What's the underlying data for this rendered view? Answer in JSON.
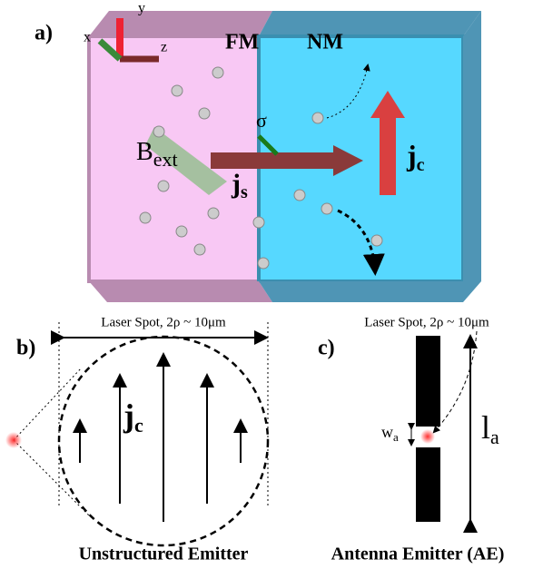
{
  "panel_a": {
    "label": "a)",
    "fm": "FM",
    "nm": "NM",
    "axis_x": "x",
    "axis_y": "y",
    "axis_z": "z",
    "sigma": "σ",
    "b_ext": {
      "main": "B",
      "sub": "ext"
    },
    "j_s": {
      "main": "j",
      "sub": "s"
    },
    "j_c": {
      "main": "j",
      "sub": "c"
    }
  },
  "panel_b": {
    "label": "b)",
    "laser_spot": "Laser Spot, 2ρ ~ 10μm",
    "j_c": {
      "main": "j",
      "sub": "c"
    },
    "caption": "Unstructured Emitter"
  },
  "panel_c": {
    "label": "c)",
    "laser_spot": "Laser Spot, 2ρ ~ 10μm",
    "w_a": {
      "main": "w",
      "sub": "a"
    },
    "l_a": {
      "main": "l",
      "sub": "a"
    },
    "caption": "Antenna Emitter (AE)"
  }
}
